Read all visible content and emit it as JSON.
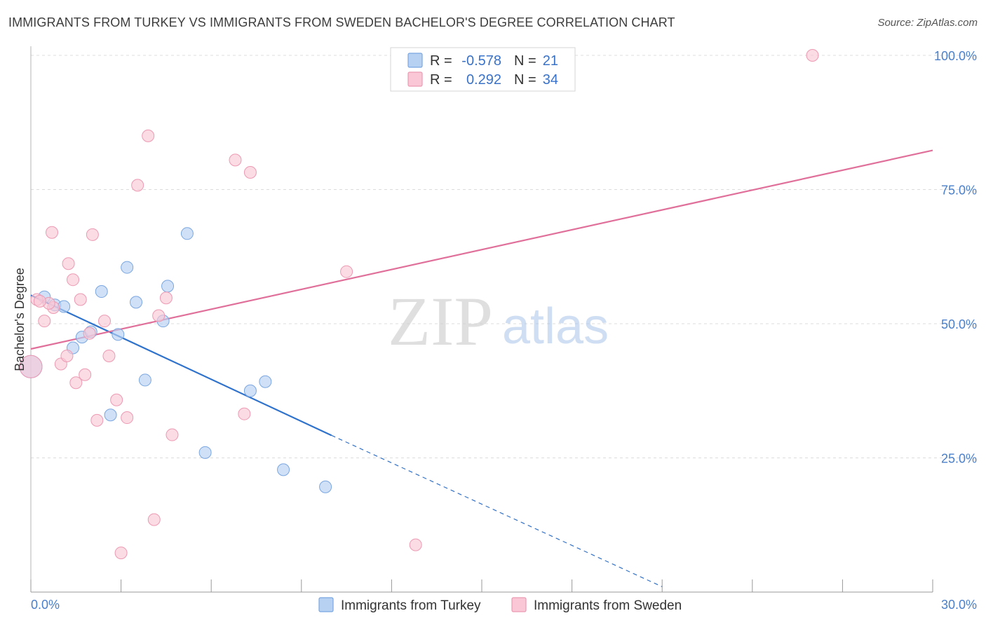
{
  "header": {
    "title": "IMMIGRANTS FROM TURKEY VS IMMIGRANTS FROM SWEDEN BACHELOR'S DEGREE CORRELATION CHART",
    "source": "Source: ZipAtlas.com"
  },
  "watermark": {
    "zip": "ZIP",
    "atlas": "atlas"
  },
  "stats": {
    "turkey": {
      "r_label": "R =",
      "r_value": "-0.578",
      "n_label": "N =",
      "n_value": "21"
    },
    "sweden": {
      "r_label": "R =",
      "r_value": "0.292",
      "n_label": "N =",
      "n_value": "34"
    }
  },
  "colors": {
    "turkey_fill": "#b7d1f3",
    "turkey_stroke": "#7aa6e0",
    "turkey_line": "#2f72cc",
    "sweden_fill": "#f9c7d5",
    "sweden_stroke": "#ec9ab3",
    "sweden_line": "#e0709a",
    "grid": "#dcdcdc",
    "axis": "#999999",
    "tick_text": "#4a7fcb"
  },
  "chart_data": {
    "type": "scatter",
    "title": "IMMIGRANTS FROM TURKEY VS IMMIGRANTS FROM SWEDEN BACHELOR'S DEGREE CORRELATION CHART",
    "xlabel": "",
    "ylabel": "Bachelor's Degree",
    "xlim": [
      0,
      30
    ],
    "ylim": [
      0,
      100
    ],
    "x_tick_labels": [
      "0.0%",
      "30.0%"
    ],
    "y_ticks": [
      25,
      50,
      75,
      100
    ],
    "y_tick_labels": [
      "25.0%",
      "50.0%",
      "75.0%",
      "100.0%"
    ],
    "grid": true,
    "legend_position": "bottom-center",
    "series": [
      {
        "name": "Immigrants from Turkey",
        "points": [
          {
            "x": 0.0,
            "y": 42.0,
            "size": "large"
          },
          {
            "x": 0.45,
            "y": 55.0
          },
          {
            "x": 0.8,
            "y": 53.5
          },
          {
            "x": 1.1,
            "y": 53.2
          },
          {
            "x": 1.4,
            "y": 45.5
          },
          {
            "x": 1.7,
            "y": 47.5
          },
          {
            "x": 2.0,
            "y": 48.5
          },
          {
            "x": 2.35,
            "y": 56.0
          },
          {
            "x": 2.65,
            "y": 33.0
          },
          {
            "x": 2.9,
            "y": 48.0
          },
          {
            "x": 3.2,
            "y": 60.5
          },
          {
            "x": 3.5,
            "y": 54.0
          },
          {
            "x": 3.8,
            "y": 39.5
          },
          {
            "x": 4.4,
            "y": 50.5
          },
          {
            "x": 4.55,
            "y": 57.0
          },
          {
            "x": 5.2,
            "y": 66.8
          },
          {
            "x": 5.8,
            "y": 26.0
          },
          {
            "x": 7.3,
            "y": 37.5
          },
          {
            "x": 7.8,
            "y": 39.2
          },
          {
            "x": 8.4,
            "y": 22.8
          },
          {
            "x": 9.8,
            "y": 19.6
          }
        ],
        "trend": {
          "x0": 0.0,
          "y0": 55.3,
          "x1_solid": 10.0,
          "y1_solid": 29.2,
          "x1_dashed": 21.0,
          "y1_dashed": 1.0
        }
      },
      {
        "name": "Immigrants from Sweden",
        "points": [
          {
            "x": 0.0,
            "y": 42.0,
            "size": "large"
          },
          {
            "x": 0.2,
            "y": 54.5
          },
          {
            "x": 0.45,
            "y": 50.5
          },
          {
            "x": 0.7,
            "y": 67.0
          },
          {
            "x": 0.75,
            "y": 53.0
          },
          {
            "x": 1.0,
            "y": 42.5
          },
          {
            "x": 1.2,
            "y": 44.0
          },
          {
            "x": 1.25,
            "y": 61.2
          },
          {
            "x": 1.4,
            "y": 58.2
          },
          {
            "x": 1.5,
            "y": 39.0
          },
          {
            "x": 1.65,
            "y": 54.5
          },
          {
            "x": 1.8,
            "y": 40.5
          },
          {
            "x": 1.95,
            "y": 48.2
          },
          {
            "x": 2.05,
            "y": 66.6
          },
          {
            "x": 2.2,
            "y": 32.0
          },
          {
            "x": 2.45,
            "y": 50.5
          },
          {
            "x": 2.6,
            "y": 44.0
          },
          {
            "x": 2.85,
            "y": 35.8
          },
          {
            "x": 3.0,
            "y": 7.3
          },
          {
            "x": 3.2,
            "y": 32.5
          },
          {
            "x": 3.55,
            "y": 75.8
          },
          {
            "x": 3.9,
            "y": 85.0
          },
          {
            "x": 4.1,
            "y": 13.5
          },
          {
            "x": 4.25,
            "y": 51.5
          },
          {
            "x": 4.5,
            "y": 54.8
          },
          {
            "x": 4.7,
            "y": 29.3
          },
          {
            "x": 6.8,
            "y": 80.5
          },
          {
            "x": 7.1,
            "y": 33.2
          },
          {
            "x": 7.3,
            "y": 78.2
          },
          {
            "x": 10.5,
            "y": 59.7
          },
          {
            "x": 12.8,
            "y": 8.8
          },
          {
            "x": 26.0,
            "y": 100.0
          },
          {
            "x": 0.6,
            "y": 53.8
          },
          {
            "x": 0.3,
            "y": 54.2
          }
        ],
        "trend": {
          "x0": 0.0,
          "y0": 45.3,
          "x1": 30.0,
          "y1": 82.3
        }
      }
    ]
  }
}
